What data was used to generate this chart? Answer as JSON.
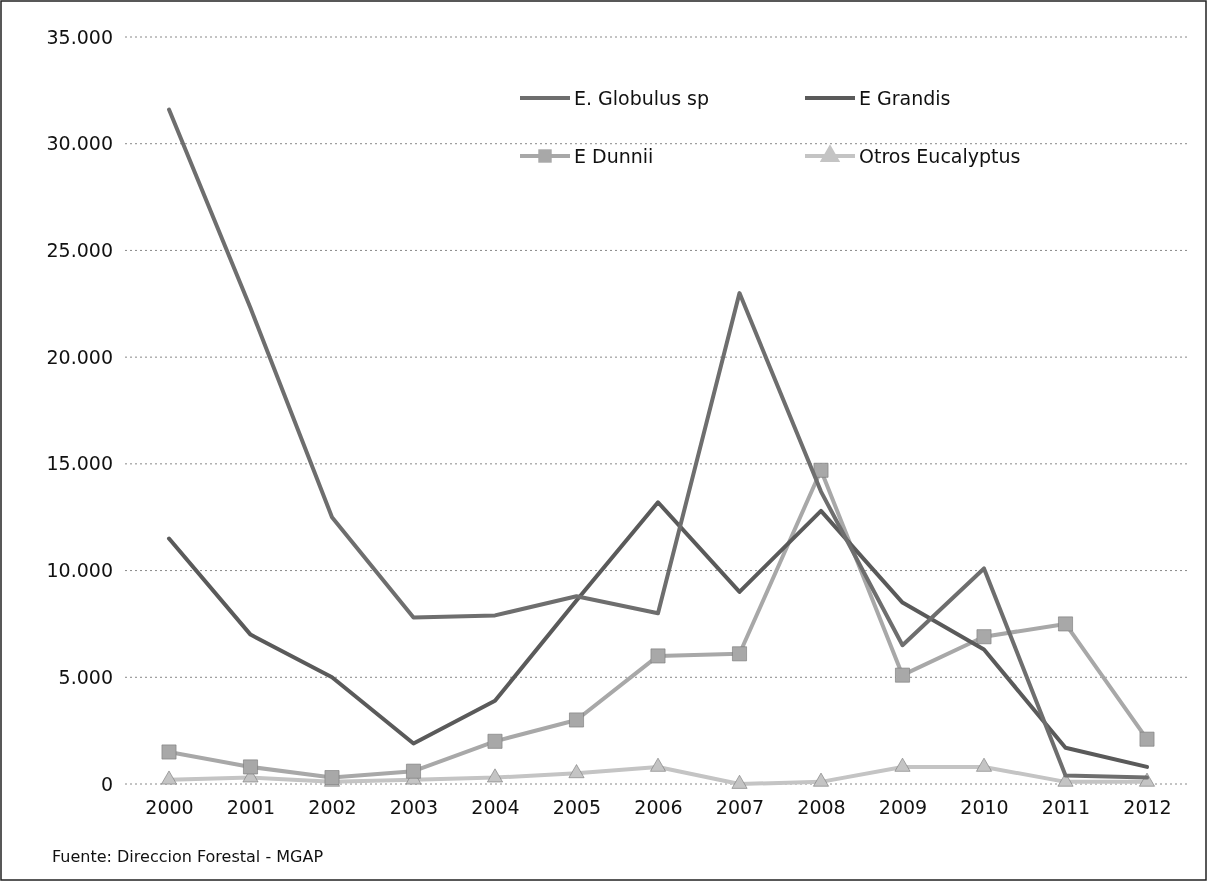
{
  "chart_data": {
    "type": "line",
    "categories": [
      "2000",
      "2001",
      "2002",
      "2003",
      "2004",
      "2005",
      "2006",
      "2007",
      "2008",
      "2009",
      "2010",
      "2011",
      "2012"
    ],
    "series": [
      {
        "name": "E. Globulus sp",
        "color": "#6e6e6e",
        "marker": "none",
        "values": [
          31600,
          22300,
          12500,
          7800,
          7900,
          8800,
          8000,
          23000,
          13700,
          6500,
          10100,
          400,
          300
        ]
      },
      {
        "name": "E Grandis",
        "color": "#5a5a5a",
        "marker": "none",
        "values": [
          11500,
          7000,
          5000,
          1900,
          3900,
          8600,
          13200,
          9000,
          12800,
          8500,
          6300,
          1700,
          800
        ]
      },
      {
        "name": "E Dunnii",
        "color": "#a8a8a8",
        "marker": "square",
        "values": [
          1500,
          800,
          300,
          600,
          2000,
          3000,
          6000,
          6100,
          14700,
          5100,
          6900,
          7500,
          2100
        ]
      },
      {
        "name": "Otros Eucalyptus",
        "color": "#c4c4c4",
        "marker": "triangle",
        "values": [
          200,
          300,
          100,
          200,
          300,
          500,
          800,
          0,
          100,
          800,
          800,
          100,
          100
        ]
      }
    ],
    "ylim": [
      0,
      35000
    ],
    "yticks": [
      {
        "value": 0,
        "label": "0"
      },
      {
        "value": 5000,
        "label": "5.000"
      },
      {
        "value": 10000,
        "label": "10.000"
      },
      {
        "value": 15000,
        "label": "15.000"
      },
      {
        "value": 20000,
        "label": "20.000"
      },
      {
        "value": 25000,
        "label": "25.000"
      },
      {
        "value": 30000,
        "label": "30.000"
      },
      {
        "value": 35000,
        "label": "35.000"
      }
    ],
    "grid": "y",
    "legend": "top right",
    "line_style": "solid",
    "annotations": [
      "Fuente: Direccion Forestal - MGAP"
    ]
  }
}
